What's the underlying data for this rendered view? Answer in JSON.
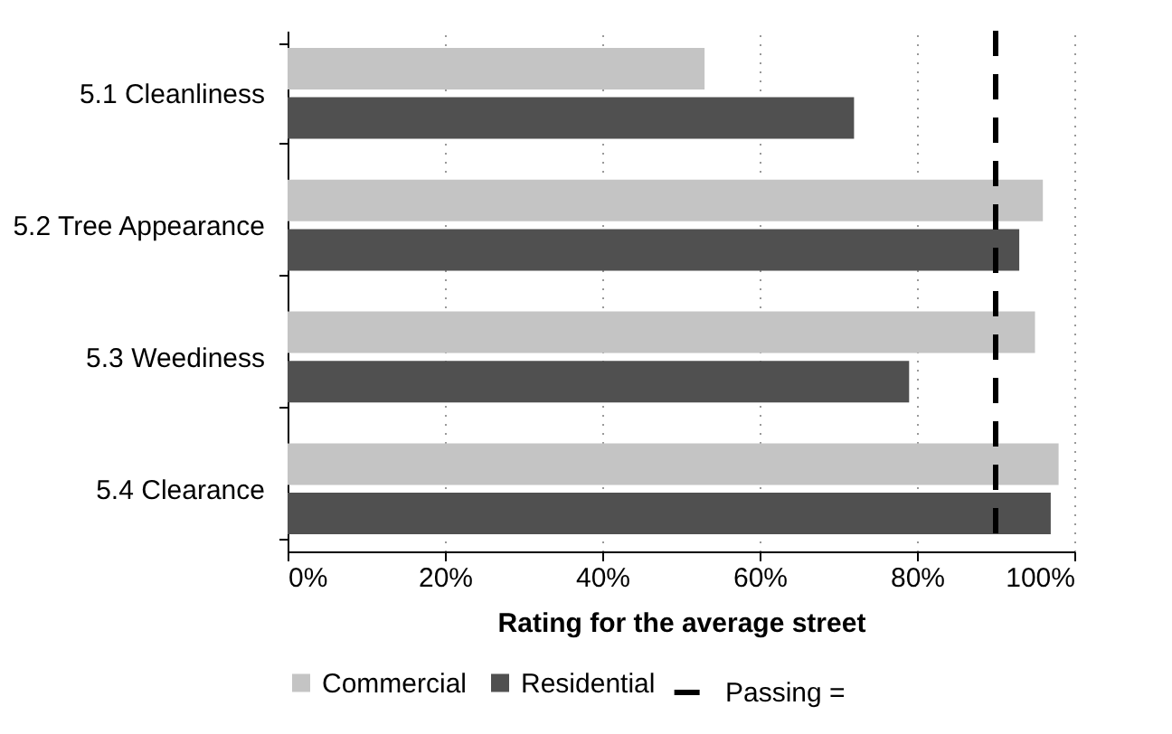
{
  "chart_data": {
    "type": "bar",
    "orientation": "horizontal",
    "categories": [
      "5.1 Cleanliness",
      "5.2 Tree Appearance",
      "5.3 Weediness",
      "5.4 Clearance"
    ],
    "series": [
      {
        "name": "Commercial",
        "color": "#c4c4c4",
        "values": [
          53,
          96,
          95,
          98
        ]
      },
      {
        "name": "Residential",
        "color": "#505050",
        "values": [
          72,
          93,
          79,
          97
        ]
      }
    ],
    "xlabel": "Rating for the average street",
    "xlim": [
      0,
      100
    ],
    "xticks": [
      {
        "value": 0,
        "label": "0%"
      },
      {
        "value": 20,
        "label": "20%"
      },
      {
        "value": 40,
        "label": "40%"
      },
      {
        "value": 60,
        "label": "60%"
      },
      {
        "value": 80,
        "label": "80%"
      },
      {
        "value": 100,
        "label": "100%"
      }
    ],
    "ref_lines": [
      {
        "axis": "x",
        "value": 90,
        "label": "Passing =",
        "color": "#000000",
        "line_style": "dashed"
      }
    ],
    "grid": "x",
    "legend": "bottom"
  }
}
